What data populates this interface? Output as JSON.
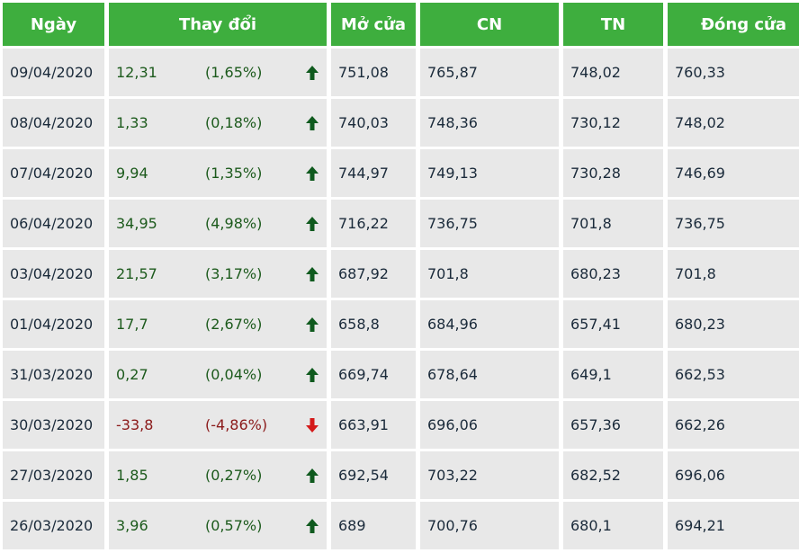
{
  "table": {
    "headers": [
      "Ngày",
      "Thay đổi",
      "Mở cửa",
      "CN",
      "TN",
      "Đóng cửa"
    ],
    "colors": {
      "header_bg": "#3eae3e",
      "up": "#0f5a1e",
      "down": "#d41a1a"
    },
    "rows": [
      {
        "date": "09/04/2020",
        "change": "12,31",
        "pct": "(1,65%)",
        "dir": "up",
        "open": "751,08",
        "high": "765,87",
        "low": "748,02",
        "close": "760,33"
      },
      {
        "date": "08/04/2020",
        "change": "1,33",
        "pct": "(0,18%)",
        "dir": "up",
        "open": "740,03",
        "high": "748,36",
        "low": "730,12",
        "close": "748,02"
      },
      {
        "date": "07/04/2020",
        "change": "9,94",
        "pct": "(1,35%)",
        "dir": "up",
        "open": "744,97",
        "high": "749,13",
        "low": "730,28",
        "close": "746,69"
      },
      {
        "date": "06/04/2020",
        "change": "34,95",
        "pct": "(4,98%)",
        "dir": "up",
        "open": "716,22",
        "high": "736,75",
        "low": "701,8",
        "close": "736,75"
      },
      {
        "date": "03/04/2020",
        "change": "21,57",
        "pct": "(3,17%)",
        "dir": "up",
        "open": "687,92",
        "high": "701,8",
        "low": "680,23",
        "close": "701,8"
      },
      {
        "date": "01/04/2020",
        "change": "17,7",
        "pct": "(2,67%)",
        "dir": "up",
        "open": "658,8",
        "high": "684,96",
        "low": "657,41",
        "close": "680,23"
      },
      {
        "date": "31/03/2020",
        "change": "0,27",
        "pct": "(0,04%)",
        "dir": "up",
        "open": "669,74",
        "high": "678,64",
        "low": "649,1",
        "close": "662,53"
      },
      {
        "date": "30/03/2020",
        "change": "-33,8",
        "pct": "(-4,86%)",
        "dir": "down",
        "open": "663,91",
        "high": "696,06",
        "low": "657,36",
        "close": "662,26"
      },
      {
        "date": "27/03/2020",
        "change": "1,85",
        "pct": "(0,27%)",
        "dir": "up",
        "open": "692,54",
        "high": "703,22",
        "low": "682,52",
        "close": "696,06"
      },
      {
        "date": "26/03/2020",
        "change": "3,96",
        "pct": "(0,57%)",
        "dir": "up",
        "open": "689",
        "high": "700,76",
        "low": "680,1",
        "close": "694,21"
      }
    ]
  }
}
